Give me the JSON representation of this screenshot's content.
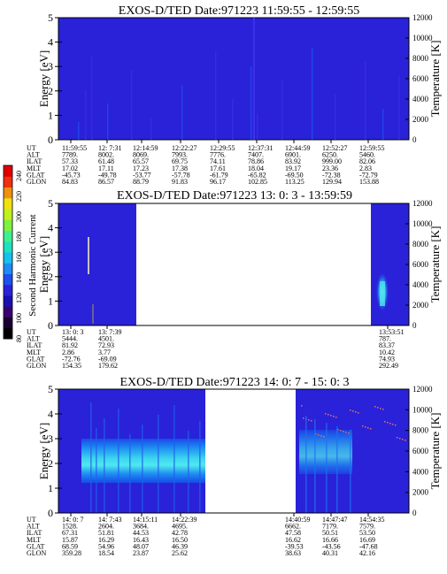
{
  "colors": {
    "background_fill": "#2a22d8",
    "band_fill": "#1e8cf2",
    "band_core": "#3dd6f0",
    "band_edge": "#1849e6"
  },
  "colorbar": {
    "label": "Second Harmonic Current",
    "ticks": [
      "240",
      "220",
      "200",
      "180",
      "160",
      "140",
      "120",
      "100",
      "80"
    ],
    "colors": [
      "#000000",
      "#1a0030",
      "#3a0070",
      "#1a10b0",
      "#2a22d8",
      "#1e50ee",
      "#1e8cf2",
      "#18c0f0",
      "#20e0c0",
      "#40f090",
      "#80f040",
      "#c0f020",
      "#f0e010",
      "#f09010",
      "#f03010",
      "#e00000"
    ]
  },
  "chart_data": [
    {
      "type": "heatmap",
      "title": "EXOS-D/TED   Date:971223   11:59:55 - 12:59:55",
      "ylabel": "Energy [eV]",
      "ylabel_right": "Temperature [K]",
      "ylim": [
        0,
        5
      ],
      "ylim_right": [
        0,
        12000
      ],
      "yticks": [
        "0",
        "1",
        "2",
        "3",
        "4",
        "5"
      ],
      "yticks_right": [
        "0",
        "2000",
        "4000",
        "6000",
        "8000",
        "10000",
        "12000"
      ],
      "row_labels": [
        "UT",
        "ALT",
        "ILAT",
        "MLT",
        "GLAT",
        "GLON"
      ],
      "columns": [
        [
          "11:59:55",
          "7789.",
          "57.33",
          "17.02",
          "-45.73",
          "84.83"
        ],
        [
          "12: 7:31",
          "8002.",
          "61.48",
          "17.11",
          "-49.78",
          "86.57"
        ],
        [
          "12:14:59",
          "8069.",
          "65.57",
          "17.23",
          "-53.77",
          "88.79"
        ],
        [
          "12:22:27",
          "7993.",
          "69.75",
          "17.38",
          "-57.78",
          "91.83"
        ],
        [
          "12:29:55",
          "7776.",
          "74.11",
          "17.61",
          "-61.79",
          "96.17"
        ],
        [
          "12:37:31",
          "7407.",
          "78.86",
          "18.04",
          "-65.82",
          "102.85"
        ],
        [
          "12:44:59",
          "6901.",
          "83.92",
          "19.17",
          "-69.50",
          "113.25"
        ],
        [
          "12:52:27",
          "6250.",
          "999.00",
          "23.36",
          "-72.38",
          "129.94"
        ],
        [
          "12:59:55",
          "5460.",
          "82.06",
          "2.83",
          "-72.79",
          "153.88"
        ]
      ],
      "data_gaps": []
    },
    {
      "type": "heatmap",
      "title": "EXOS-D/TED   Date:971223   13: 0: 3 - 13:59:59",
      "ylabel": "Energy [eV]",
      "ylabel_right": "Temperature [K]",
      "ylim": [
        0,
        5
      ],
      "ylim_right": [
        0,
        12000
      ],
      "yticks": [
        "0",
        "1",
        "2",
        "3",
        "4",
        "5"
      ],
      "yticks_right": [
        "0",
        "2000",
        "4000",
        "6000",
        "8000",
        "10000",
        "12000"
      ],
      "row_labels": [
        "UT",
        "ALT",
        "ILAT",
        "MLT",
        "GLAT",
        "GLON"
      ],
      "columns": [
        [
          "13: 0: 3",
          "5444.",
          "81.92",
          "2.86",
          "-72.76",
          "154.35"
        ],
        [
          "13: 7:39",
          "4501.",
          "72.93",
          "3.77",
          "-69.09",
          "179.62"
        ],
        [
          "13:53:51",
          "787.",
          "83.37",
          "10.42",
          "74.93",
          "292.49"
        ]
      ],
      "data_gaps": [
        [
          "13:08",
          "13:53"
        ]
      ]
    },
    {
      "type": "heatmap",
      "title": "EXOS-D/TED   Date:971223   14: 0: 7 - 15: 0: 3",
      "ylabel": "Energy [eV]",
      "ylabel_right": "Temperature [K]",
      "ylim": [
        0,
        5
      ],
      "ylim_right": [
        0,
        12000
      ],
      "yticks": [
        "0",
        "1",
        "2",
        "3",
        "4",
        "5"
      ],
      "yticks_right": [
        "0",
        "2000",
        "4000",
        "6000",
        "8000",
        "10000",
        "12000"
      ],
      "row_labels": [
        "UT",
        "ALT",
        "ILAT",
        "MLT",
        "GLAT",
        "GLON"
      ],
      "columns": [
        [
          "14: 0: 7",
          "1528.",
          "67.31",
          "15.87",
          "68.59",
          "359.28"
        ],
        [
          "14: 7:43",
          "2604.",
          "51.81",
          "16.29",
          "54.96",
          "18.54"
        ],
        [
          "14:15:11",
          "3684.",
          "44.53",
          "16.43",
          "48.07",
          "23.87"
        ],
        [
          "14:22:39",
          "4695.",
          "42.78",
          "16.50",
          "46.39",
          "25.62"
        ],
        [
          "14:40:59",
          "6662.",
          "47.58",
          "16.62",
          "-39.53",
          "38.63"
        ],
        [
          "14:47:47",
          "7179.",
          "50.51",
          "16.66",
          "-43.56",
          "40.31"
        ],
        [
          "14:54:35",
          "7579.",
          "53.50",
          "16.69",
          "-47.68",
          "42.16"
        ]
      ],
      "data_gaps": [
        [
          "14:27",
          "14:40"
        ]
      ]
    }
  ]
}
